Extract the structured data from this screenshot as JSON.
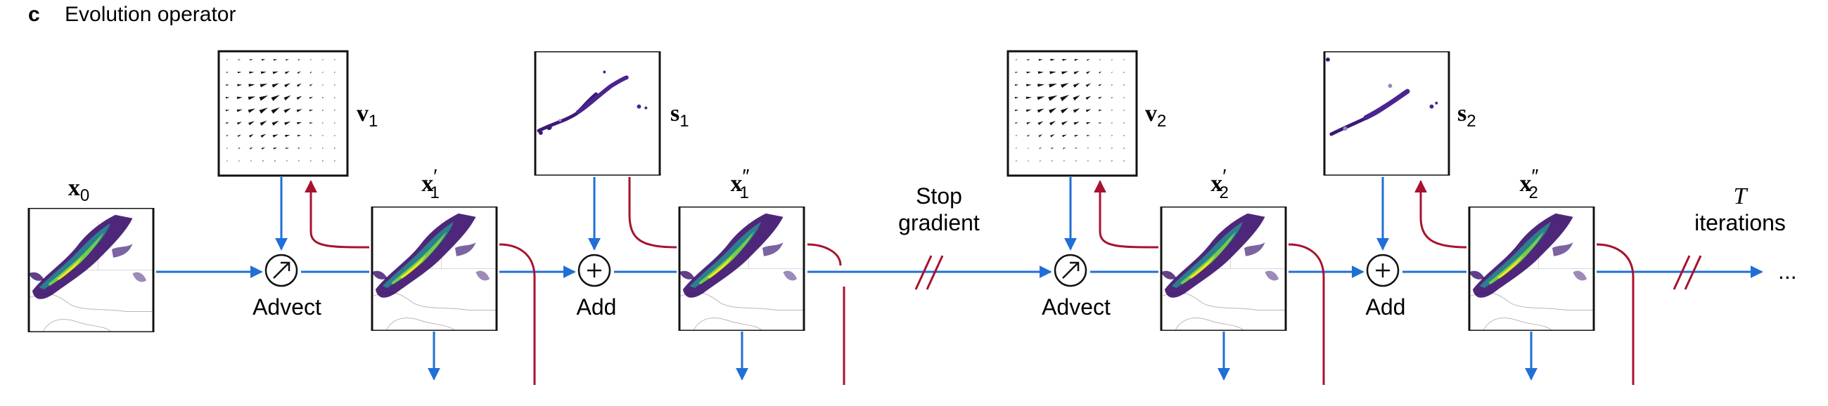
{
  "panel": {
    "letter": "c",
    "title": "Evolution operator"
  },
  "colors": {
    "forward_arrow": "#1f6fd6",
    "gradient_path": "#a8122e",
    "frame": "#111111",
    "precip_dark": "#3b0f6b",
    "precip_mid": "#2c7f8e",
    "precip_high": "#6fcf4a",
    "precip_peak": "#f2e51d"
  },
  "nodes": {
    "x0": {
      "symbol": "x",
      "sub": "0",
      "prime": ""
    },
    "x1p": {
      "symbol": "x",
      "sub": "1",
      "prime": "′"
    },
    "x1pp": {
      "symbol": "x",
      "sub": "1",
      "prime": "″"
    },
    "x2p": {
      "symbol": "x",
      "sub": "2",
      "prime": "′"
    },
    "x2pp": {
      "symbol": "x",
      "sub": "2",
      "prime": "″"
    },
    "v1": {
      "symbol": "v",
      "sub": "1"
    },
    "s1": {
      "symbol": "s",
      "sub": "1"
    },
    "v2": {
      "symbol": "v",
      "sub": "2"
    },
    "s2": {
      "symbol": "s",
      "sub": "2"
    }
  },
  "operators": {
    "advect_label": "Advect",
    "add_label": "Add",
    "advect_icon": "arrow-circle-icon",
    "add_icon": "plus-circle-icon"
  },
  "annotations": {
    "stop_gradient_line1": "Stop",
    "stop_gradient_line2": "gradient",
    "iterations_var": "T",
    "iterations_word": "iterations",
    "ellipsis": "..."
  }
}
